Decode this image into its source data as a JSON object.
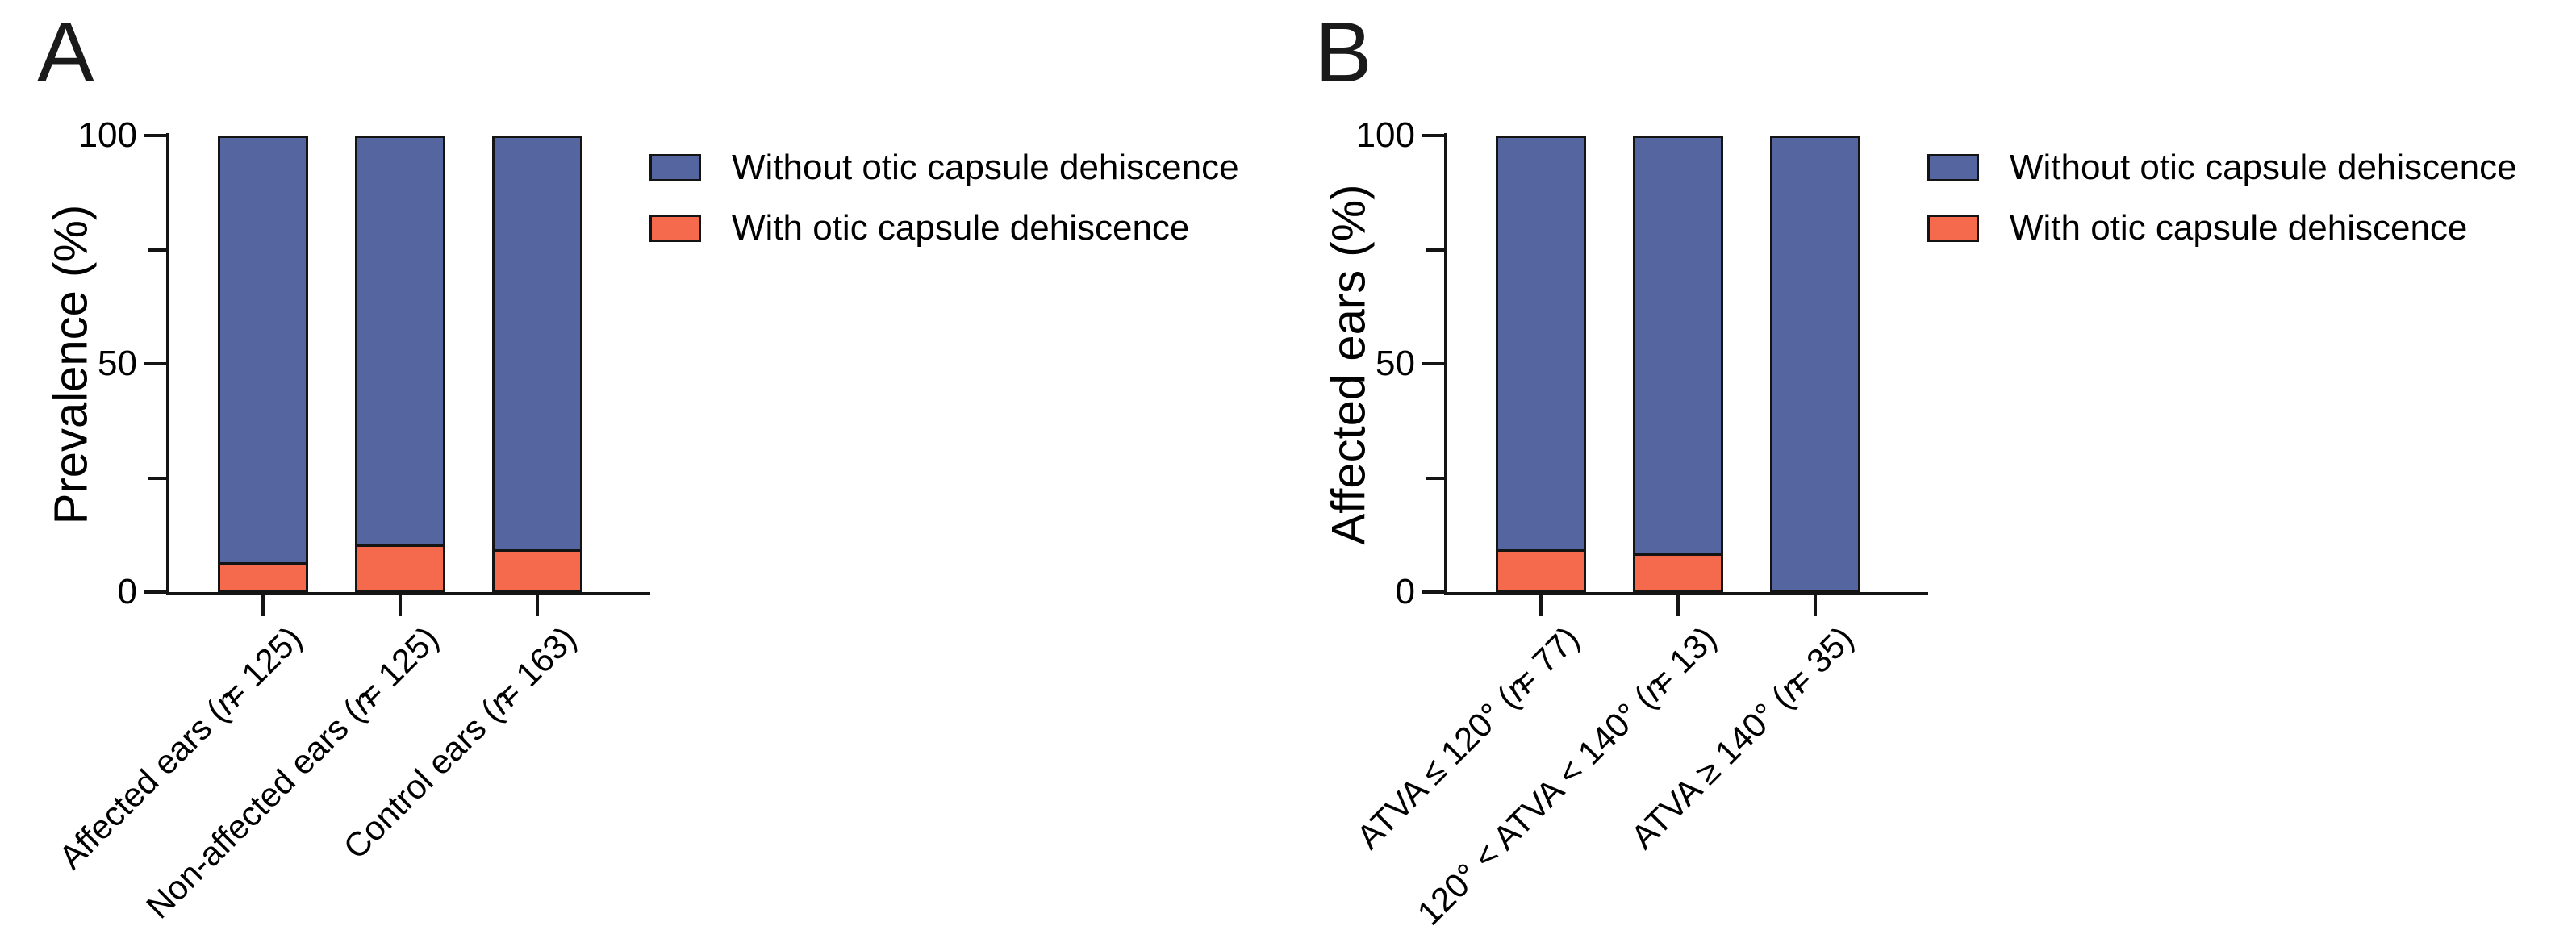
{
  "colors": {
    "without_fill": "#54659F",
    "with_fill": "#F5694C",
    "outline": "#141414",
    "text": "#000000",
    "background": "#FFFFFF"
  },
  "chart_data": [
    {
      "type": "bar",
      "stacked": true,
      "panel_label": "A",
      "title": "",
      "xlabel": "",
      "ylabel": "Prevalence (%)",
      "ylim": [
        0,
        100
      ],
      "yticks_major": [
        0,
        50,
        100
      ],
      "yticks_minor": [
        25,
        75
      ],
      "grid": false,
      "legend_position": "right-of-plot-top",
      "categories": [
        "Affected ears (n = 125)",
        "Non-affected ears (n = 125)",
        "Control ears (n = 163)"
      ],
      "series": [
        {
          "name": "Without otic capsule dehiscence",
          "color_key": "without_fill",
          "values": [
            94,
            90,
            91
          ]
        },
        {
          "name": "With otic capsule dehiscence",
          "color_key": "with_fill",
          "values": [
            6,
            10,
            9
          ]
        }
      ]
    },
    {
      "type": "bar",
      "stacked": true,
      "panel_label": "B",
      "title": "",
      "xlabel": "",
      "ylabel": "Affected ears (%)",
      "ylim": [
        0,
        100
      ],
      "yticks_major": [
        0,
        50,
        100
      ],
      "yticks_minor": [
        25,
        75
      ],
      "grid": false,
      "legend_position": "right-of-plot-top",
      "categories": [
        "ATVA ≤ 120° (n = 77)",
        "120° < ATVA < 140° (n = 13)",
        "ATVA ≥ 140° (n = 35)"
      ],
      "series": [
        {
          "name": "Without otic capsule dehiscence",
          "color_key": "without_fill",
          "values": [
            91,
            92,
            100
          ]
        },
        {
          "name": "With otic capsule dehiscence",
          "color_key": "with_fill",
          "values": [
            9,
            8,
            0
          ]
        }
      ]
    }
  ]
}
